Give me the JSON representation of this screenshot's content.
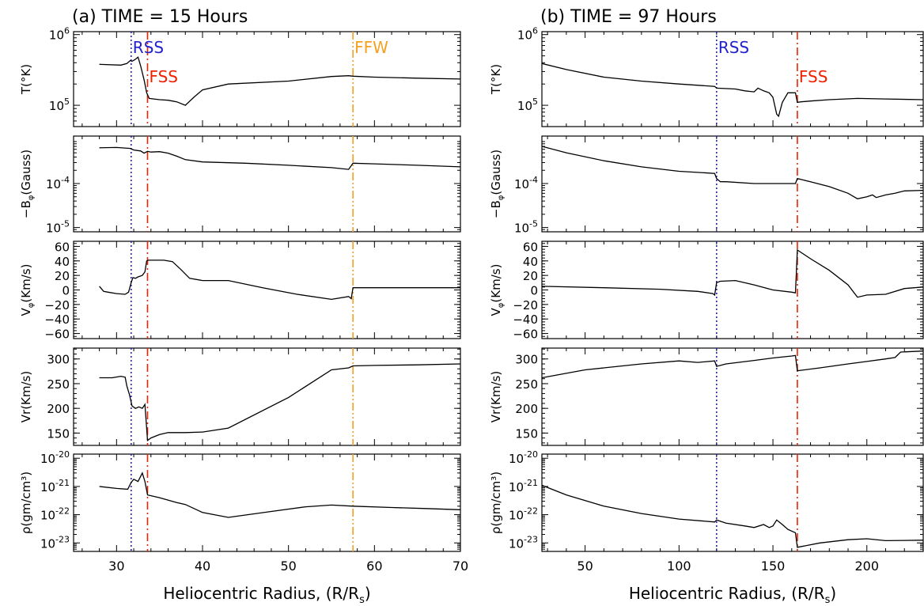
{
  "chart_data": [
    {
      "type": "line",
      "title": "(a) TIME =  15 Hours",
      "xlabel": "Heliocentric Radius, (R/R",
      "xlabel_sub": "s",
      "xlabel_end": ")",
      "xlim": [
        25,
        70
      ],
      "xticks": [
        30,
        40,
        50,
        60,
        70
      ],
      "markers": [
        {
          "label": "RSS",
          "x": 31.7,
          "color": "#2222cc",
          "style": "dotted",
          "show_label": true
        },
        {
          "label": "FSS",
          "x": 33.6,
          "color": "#ee2200",
          "style": "dashdot",
          "show_label": true
        },
        {
          "label": "FFW",
          "x": 57.5,
          "color": "#f5a020",
          "style": "dashdotdot",
          "show_label": true
        }
      ],
      "panels": [
        {
          "ylabel": "T(°K)",
          "scale": "log",
          "ylim": [
            50000,
            1100000
          ],
          "ticks": [
            {
              "v": 100000,
              "m": "10",
              "e": "5"
            },
            {
              "v": 1000000,
              "m": "10",
              "e": "6"
            }
          ],
          "x": [
            28,
            30.5,
            31.2,
            31.6,
            31.8,
            32.1,
            32.5,
            32.8,
            33.2,
            33.5,
            33.8,
            35,
            36,
            37,
            38,
            39,
            40,
            43,
            50,
            55,
            57,
            57.5,
            60,
            65,
            70
          ],
          "y": [
            380000,
            370000,
            390000,
            430000,
            420000,
            440000,
            480000,
            360000,
            230000,
            150000,
            125000,
            120000,
            118000,
            112000,
            100000,
            130000,
            165000,
            200000,
            220000,
            255000,
            262000,
            258000,
            250000,
            242000,
            235000
          ]
        },
        {
          "ylabel": "−B",
          "ylabel_sub": "φ",
          "ylabel_end": "(Gauss)",
          "scale": "log",
          "ylim": [
            8e-06,
            0.0012
          ],
          "ticks": [
            {
              "v": 1e-05,
              "m": "10",
              "e": "-5"
            },
            {
              "v": 0.0001,
              "m": "10",
              "e": "-4"
            }
          ],
          "x": [
            28,
            30,
            31.6,
            32,
            32.8,
            33.2,
            33.6,
            34,
            35,
            36,
            37,
            38,
            40,
            45,
            50,
            55,
            57,
            57.5,
            60,
            65,
            70
          ],
          "y": [
            0.00065,
            0.00066,
            0.00063,
            0.00058,
            0.00055,
            0.00049,
            0.00054,
            0.00052,
            0.00053,
            0.00049,
            0.00042,
            0.00035,
            0.00031,
            0.00029,
            0.00026,
            0.00023,
            0.00021,
            0.00029,
            0.00028,
            0.00026,
            0.00024
          ]
        },
        {
          "ylabel": "V",
          "ylabel_sub": "φ",
          "ylabel_end": "(Km/s)",
          "scale": "linear",
          "ylim": [
            -67,
            67
          ],
          "ticks": [
            {
              "v": -60,
              "t": "−60"
            },
            {
              "v": -40,
              "t": "−40"
            },
            {
              "v": -20,
              "t": "−20"
            },
            {
              "v": 0,
              "t": "0"
            },
            {
              "v": 20,
              "t": "20"
            },
            {
              "v": 40,
              "t": "40"
            },
            {
              "v": 60,
              "t": "60"
            }
          ],
          "x": [
            28,
            28.5,
            29,
            30,
            31,
            31.4,
            31.7,
            31.9,
            32.2,
            32.5,
            33,
            33.3,
            33.5,
            33.7,
            34,
            35.5,
            36.5,
            37.5,
            38.5,
            40,
            43,
            47,
            51,
            55,
            57,
            57.3,
            57.5,
            60,
            65,
            70
          ],
          "y": [
            5,
            -2,
            -3,
            -5,
            -6,
            -3,
            10,
            17,
            16,
            18,
            20,
            25,
            40,
            41,
            41,
            41,
            39,
            28,
            16,
            13,
            13,
            3,
            -6,
            -13,
            -9,
            -12,
            3,
            3,
            3,
            3
          ]
        },
        {
          "ylabel": "Vr(Km/s)",
          "scale": "linear",
          "ylim": [
            125,
            322
          ],
          "ticks": [
            {
              "v": 150,
              "t": "150"
            },
            {
              "v": 200,
              "t": "200"
            },
            {
              "v": 250,
              "t": "250"
            },
            {
              "v": 300,
              "t": "300"
            }
          ],
          "x": [
            28,
            29.5,
            30.5,
            31,
            31.2,
            31.5,
            31.8,
            32.2,
            32.6,
            33,
            33.3,
            33.6,
            34,
            35,
            36,
            38,
            40,
            43,
            50,
            55,
            57,
            57.5,
            60,
            65,
            70
          ],
          "y": [
            262,
            262,
            265,
            263,
            245,
            228,
            205,
            200,
            203,
            200,
            208,
            135,
            140,
            147,
            151,
            151,
            152,
            160,
            222,
            278,
            282,
            286,
            287,
            288,
            290
          ]
        },
        {
          "ylabel": "ρ(gm/cm³)",
          "scale": "log",
          "ylim": [
            5e-24,
            1.4e-20
          ],
          "ticks": [
            {
              "v": 1e-23,
              "m": "10",
              "e": "-23"
            },
            {
              "v": 1e-22,
              "m": "10",
              "e": "-22"
            },
            {
              "v": 1e-21,
              "m": "10",
              "e": "-21"
            },
            {
              "v": 1e-20,
              "m": "10",
              "e": "-20"
            }
          ],
          "x": [
            28,
            30,
            31.3,
            31.7,
            32,
            32.5,
            33,
            33.3,
            33.6,
            35,
            37,
            38,
            40,
            43,
            48,
            52,
            55,
            57.5,
            62,
            66,
            70
          ],
          "y": [
            1e-21,
            8.5e-22,
            8e-22,
            1.4e-21,
            1.8e-21,
            1.5e-21,
            3e-21,
            1.5e-21,
            5e-22,
            4e-22,
            2.7e-22,
            2.3e-22,
            1.2e-22,
            8e-23,
            1.3e-22,
            1.9e-22,
            2.2e-22,
            2e-22,
            1.8e-22,
            1.65e-22,
            1.5e-22
          ]
        }
      ]
    },
    {
      "type": "line",
      "title": "(b) TIME =  97 Hours",
      "xlabel": "Heliocentric Radius, (R/R",
      "xlabel_sub": "s",
      "xlabel_end": ")",
      "xlim": [
        27,
        230
      ],
      "xticks": [
        50,
        100,
        150,
        200
      ],
      "markers": [
        {
          "label": "RSS",
          "x": 120,
          "color": "#2222cc",
          "style": "dotted",
          "show_label": true
        },
        {
          "label": "FSS",
          "x": 163,
          "color": "#ee2200",
          "style": "dashdot",
          "show_label": true
        }
      ],
      "panels": [
        {
          "ylabel": "T(°K)",
          "scale": "log",
          "ylim": [
            50000,
            1100000
          ],
          "ticks": [
            {
              "v": 100000,
              "m": "10",
              "e": "5"
            },
            {
              "v": 1000000,
              "m": "10",
              "e": "6"
            }
          ],
          "x": [
            27,
            40,
            60,
            80,
            100,
            119,
            120,
            130,
            135,
            140,
            142,
            145,
            148,
            150,
            152,
            153,
            155,
            158,
            162,
            163,
            165,
            170,
            180,
            195,
            210,
            230
          ],
          "y": [
            390000,
            320000,
            250000,
            220000,
            200000,
            185000,
            175000,
            170000,
            160000,
            155000,
            175000,
            160000,
            150000,
            130000,
            75000,
            70000,
            110000,
            150000,
            150000,
            110000,
            112000,
            115000,
            120000,
            125000,
            123000,
            120000
          ]
        },
        {
          "ylabel": "−B",
          "ylabel_sub": "φ",
          "ylabel_end": "(Gauss)",
          "scale": "log",
          "ylim": [
            8e-06,
            0.0012
          ],
          "ticks": [
            {
              "v": 1e-05,
              "m": "10",
              "e": "-5"
            },
            {
              "v": 0.0001,
              "m": "10",
              "e": "-4"
            }
          ],
          "x": [
            27,
            40,
            60,
            80,
            100,
            119,
            120,
            122,
            125,
            140,
            162,
            163,
            170,
            180,
            190,
            195,
            200,
            203,
            205,
            210,
            215,
            220,
            230
          ],
          "y": [
            0.0007,
            0.0005,
            0.00033,
            0.00024,
            0.00019,
            0.00017,
            0.00013,
            0.00011,
            0.00011,
            0.0001,
            0.0001,
            0.00013,
            0.00011,
            8.5e-05,
            6e-05,
            4.5e-05,
            5e-05,
            5.5e-05,
            4.8e-05,
            5.5e-05,
            6e-05,
            6.8e-05,
            7e-05
          ]
        },
        {
          "ylabel": "V",
          "ylabel_sub": "φ",
          "ylabel_end": "(Km/s)",
          "scale": "linear",
          "ylim": [
            -67,
            67
          ],
          "ticks": [
            {
              "v": -60,
              "t": "−60"
            },
            {
              "v": -40,
              "t": "−40"
            },
            {
              "v": -20,
              "t": "−20"
            },
            {
              "v": 0,
              "t": "0"
            },
            {
              "v": 20,
              "t": "20"
            },
            {
              "v": 40,
              "t": "40"
            },
            {
              "v": 60,
              "t": "60"
            }
          ],
          "x": [
            27,
            60,
            90,
            110,
            118,
            119,
            120,
            122,
            130,
            140,
            150,
            160,
            162,
            163,
            170,
            180,
            190,
            195,
            200,
            210,
            220,
            230
          ],
          "y": [
            5,
            3,
            1,
            -2,
            -5,
            -7,
            10,
            12,
            13,
            7,
            0,
            -3,
            -4,
            55,
            43,
            27,
            7,
            -10,
            -7,
            -6,
            2,
            4
          ]
        },
        {
          "ylabel": "Vr(Km/s)",
          "scale": "linear",
          "ylim": [
            125,
            322
          ],
          "ticks": [
            {
              "v": 150,
              "t": "150"
            },
            {
              "v": 200,
              "t": "200"
            },
            {
              "v": 250,
              "t": "250"
            },
            {
              "v": 300,
              "t": "300"
            }
          ],
          "x": [
            27,
            50,
            80,
            100,
            110,
            119,
            120,
            125,
            140,
            150,
            160,
            162,
            163,
            175,
            190,
            200,
            210,
            215,
            218,
            230
          ],
          "y": [
            262,
            278,
            290,
            296,
            293,
            296,
            285,
            290,
            297,
            302,
            306,
            307,
            276,
            282,
            290,
            295,
            300,
            303,
            314,
            316
          ]
        },
        {
          "ylabel": "ρ(gm/cm³)",
          "scale": "log",
          "ylim": [
            5e-24,
            1.4e-20
          ],
          "ticks": [
            {
              "v": 1e-23,
              "m": "10",
              "e": "-23"
            },
            {
              "v": 1e-22,
              "m": "10",
              "e": "-22"
            },
            {
              "v": 1e-21,
              "m": "10",
              "e": "-21"
            },
            {
              "v": 1e-20,
              "m": "10",
              "e": "-20"
            }
          ],
          "x": [
            27,
            40,
            60,
            80,
            100,
            119,
            120,
            125,
            135,
            140,
            145,
            148,
            150,
            152,
            155,
            158,
            162,
            163,
            175,
            190,
            200,
            210,
            230
          ],
          "y": [
            1.1e-21,
            5e-22,
            2e-22,
            1.1e-22,
            7e-23,
            5.5e-23,
            6.5e-23,
            5e-23,
            4e-23,
            3.5e-23,
            4.5e-23,
            3.5e-23,
            4e-23,
            6.5e-23,
            4.5e-23,
            3e-23,
            2.3e-23,
            7e-24,
            1e-23,
            1.3e-23,
            1.4e-23,
            1.2e-23,
            1.25e-23
          ]
        }
      ]
    }
  ]
}
